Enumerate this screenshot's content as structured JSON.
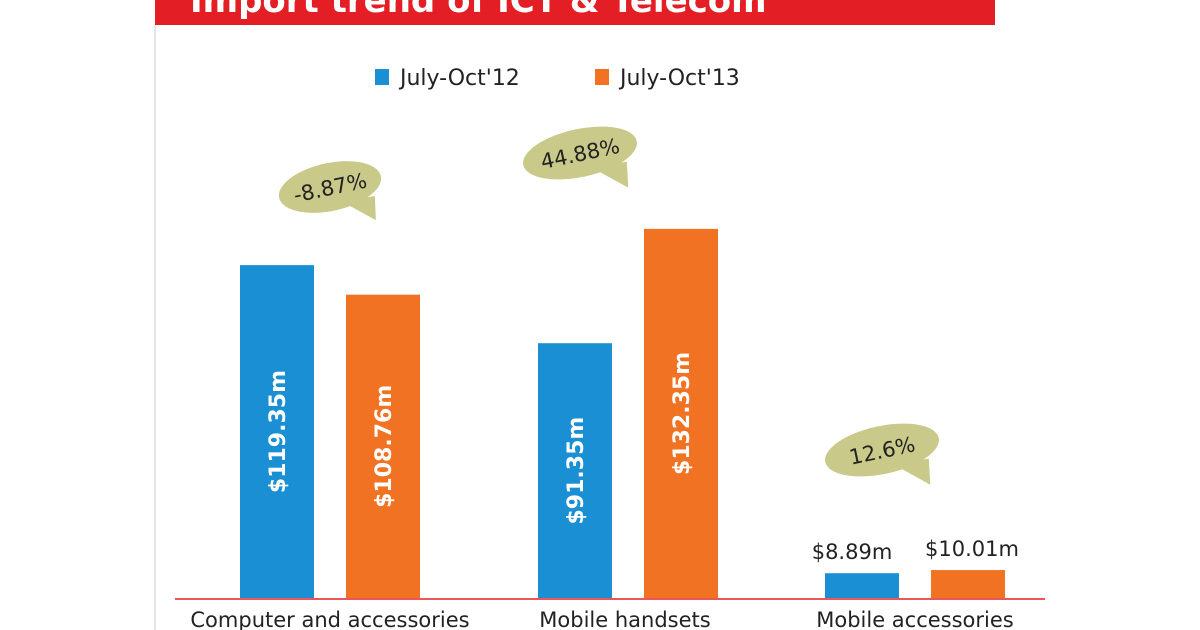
{
  "chart_data": {
    "type": "bar",
    "title": "Import trend of ICT & Telecom",
    "categories": [
      "Computer and accessories",
      "Mobile handsets",
      "Mobile accessories"
    ],
    "series": [
      {
        "name": "July-Oct'12",
        "color": "#1a8fd3",
        "values": [
          119.35,
          91.35,
          8.89
        ],
        "labels": [
          "$119.35m",
          "$91.35m",
          "$8.89m"
        ]
      },
      {
        "name": "July-Oct'13",
        "color": "#f07222",
        "values": [
          108.76,
          132.35,
          10.01
        ],
        "labels": [
          "$108.76m",
          "$132.35m",
          "$10.01m"
        ]
      }
    ],
    "annotations": [
      "-8.87%",
      "44.88%",
      "12.6%"
    ],
    "ylim": [
      0,
      147
    ],
    "grid": false,
    "legend": "top-center",
    "colors": {
      "title_bar": "#e31e24",
      "bubble": "#c9c98a",
      "axis": "#e31e24"
    }
  }
}
